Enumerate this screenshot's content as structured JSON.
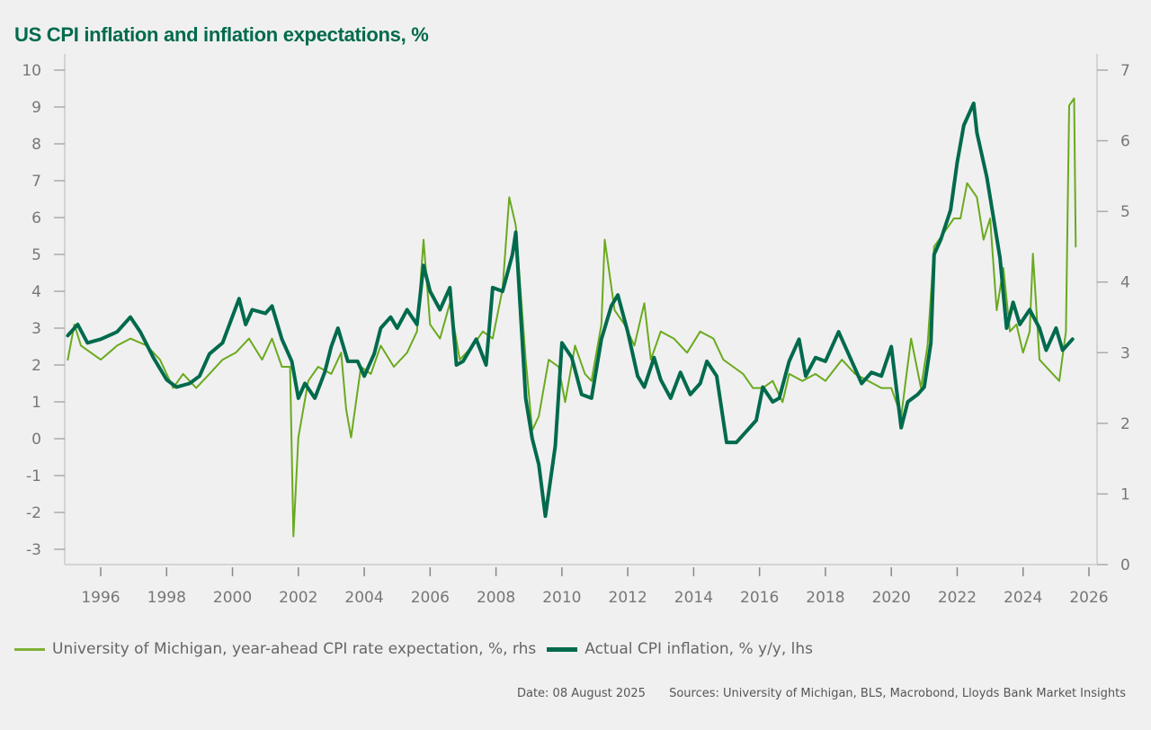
{
  "chart_data": {
    "type": "line",
    "title": "US CPI inflation and inflation expectations, %",
    "xlabel": "",
    "ylabel_left": "",
    "ylabel_right": "",
    "x_ticks": [
      "1996",
      "1998",
      "2000",
      "2002",
      "2004",
      "2006",
      "2008",
      "2010",
      "2012",
      "2014",
      "2016",
      "2018",
      "2020",
      "2022",
      "2024",
      "2026"
    ],
    "xlim": [
      1995.0,
      2026.3
    ],
    "y_left": {
      "ticks": [
        "10",
        "9",
        "8",
        "7",
        "6",
        "5",
        "4",
        "3",
        "2",
        "1",
        "0",
        "-1",
        "-2",
        "-3"
      ],
      "ylim": [
        -3,
        10
      ]
    },
    "y_right": {
      "ticks": [
        "7",
        "6",
        "5",
        "4",
        "3",
        "2",
        "1",
        "0"
      ],
      "ylim": [
        0,
        7
      ]
    },
    "grid": false,
    "legend_position": "bottom",
    "series": [
      {
        "name": "University of Michigan, year-ahead CPI rate expectation, %, rhs",
        "axis": "right",
        "color": "#6aaa1e",
        "x": [
          1995.0,
          1995.2,
          1995.4,
          1996.0,
          1996.5,
          1996.9,
          1997.4,
          1997.8,
          1998.2,
          1998.5,
          1998.9,
          1999.3,
          1999.7,
          2000.1,
          2000.5,
          2000.9,
          2001.2,
          2001.5,
          2001.75,
          2001.85,
          2002.0,
          2002.3,
          2002.6,
          2003.0,
          2003.3,
          2003.45,
          2003.6,
          2003.9,
          2004.2,
          2004.5,
          2004.9,
          2005.3,
          2005.6,
          2005.8,
          2006.0,
          2006.3,
          2006.6,
          2006.9,
          2007.3,
          2007.6,
          2007.9,
          2008.2,
          2008.4,
          2008.6,
          2008.9,
          2009.1,
          2009.3,
          2009.6,
          2009.9,
          2010.1,
          2010.4,
          2010.7,
          2010.9,
          2011.2,
          2011.3,
          2011.6,
          2011.9,
          2012.2,
          2012.5,
          2012.7,
          2013.0,
          2013.4,
          2013.8,
          2014.2,
          2014.6,
          2014.9,
          2015.2,
          2015.5,
          2015.8,
          2016.1,
          2016.4,
          2016.7,
          2016.9,
          2017.3,
          2017.7,
          2018.0,
          2018.5,
          2018.9,
          2019.3,
          2019.7,
          2020.0,
          2020.3,
          2020.6,
          2020.9,
          2021.1,
          2021.3,
          2021.6,
          2021.9,
          2022.1,
          2022.3,
          2022.6,
          2022.8,
          2023.0,
          2023.2,
          2023.4,
          2023.6,
          2023.8,
          2024.0,
          2024.2,
          2024.3,
          2024.5,
          2024.9,
          2025.1,
          2025.3,
          2025.4,
          2025.55,
          2025.6
        ],
        "values": [
          2.9,
          3.4,
          3.1,
          2.9,
          3.1,
          3.2,
          3.1,
          2.9,
          2.5,
          2.7,
          2.5,
          2.7,
          2.9,
          3.0,
          3.2,
          2.9,
          3.2,
          2.8,
          2.8,
          0.4,
          1.8,
          2.6,
          2.8,
          2.7,
          3.0,
          2.2,
          1.8,
          2.8,
          2.7,
          3.1,
          2.8,
          3.0,
          3.3,
          4.6,
          3.4,
          3.2,
          3.7,
          2.9,
          3.1,
          3.3,
          3.2,
          3.9,
          5.2,
          4.8,
          2.9,
          1.9,
          2.1,
          2.9,
          2.8,
          2.3,
          3.1,
          2.7,
          2.6,
          3.4,
          4.6,
          3.6,
          3.4,
          3.1,
          3.7,
          2.9,
          3.3,
          3.2,
          3.0,
          3.3,
          3.2,
          2.9,
          2.8,
          2.7,
          2.5,
          2.5,
          2.6,
          2.3,
          2.7,
          2.6,
          2.7,
          2.6,
          2.9,
          2.7,
          2.6,
          2.5,
          2.5,
          2.1,
          3.2,
          2.5,
          3.1,
          4.5,
          4.7,
          4.9,
          4.9,
          5.4,
          5.2,
          4.6,
          4.9,
          3.6,
          4.2,
          3.3,
          3.4,
          3.0,
          3.3,
          4.4,
          2.9,
          2.7,
          2.6,
          3.3,
          6.5,
          6.6,
          4.5
        ]
      },
      {
        "name": "Actual CPI inflation, % y/y, lhs",
        "axis": "left",
        "color": "#006a4d",
        "x": [
          1995.0,
          1995.3,
          1995.6,
          1996.0,
          1996.5,
          1996.9,
          1997.2,
          1997.6,
          1998.0,
          1998.3,
          1998.7,
          1999.0,
          1999.3,
          1999.7,
          2000.2,
          2000.4,
          2000.6,
          2001.0,
          2001.2,
          2001.5,
          2001.8,
          2002.0,
          2002.2,
          2002.5,
          2002.8,
          2003.0,
          2003.2,
          2003.5,
          2003.8,
          2004.0,
          2004.3,
          2004.5,
          2004.8,
          2005.0,
          2005.3,
          2005.6,
          2005.8,
          2006.0,
          2006.3,
          2006.6,
          2006.8,
          2007.0,
          2007.4,
          2007.7,
          2007.9,
          2008.2,
          2008.5,
          2008.6,
          2008.9,
          2009.1,
          2009.3,
          2009.5,
          2009.8,
          2010.0,
          2010.3,
          2010.6,
          2010.9,
          2011.2,
          2011.5,
          2011.7,
          2012.0,
          2012.3,
          2012.5,
          2012.8,
          2013.0,
          2013.3,
          2013.6,
          2013.9,
          2014.2,
          2014.4,
          2014.7,
          2015.0,
          2015.3,
          2015.6,
          2015.9,
          2016.1,
          2016.4,
          2016.6,
          2016.9,
          2017.2,
          2017.4,
          2017.7,
          2018.0,
          2018.4,
          2018.7,
          2018.9,
          2019.1,
          2019.4,
          2019.7,
          2020.0,
          2020.3,
          2020.5,
          2020.8,
          2021.0,
          2021.2,
          2021.3,
          2021.5,
          2021.8,
          2022.0,
          2022.2,
          2022.5,
          2022.6,
          2022.9,
          2023.1,
          2023.3,
          2023.5,
          2023.7,
          2023.9,
          2024.2,
          2024.5,
          2024.7,
          2025.0,
          2025.2,
          2025.5
        ],
        "values": [
          2.8,
          3.1,
          2.6,
          2.7,
          2.9,
          3.3,
          2.9,
          2.2,
          1.6,
          1.4,
          1.5,
          1.7,
          2.3,
          2.6,
          3.8,
          3.1,
          3.5,
          3.4,
          3.6,
          2.7,
          2.1,
          1.1,
          1.5,
          1.1,
          1.8,
          2.5,
          3.0,
          2.1,
          2.1,
          1.7,
          2.3,
          3.0,
          3.3,
          3.0,
          3.5,
          3.1,
          4.7,
          4.0,
          3.5,
          4.1,
          2.0,
          2.1,
          2.7,
          2.0,
          4.1,
          4.0,
          5.0,
          5.6,
          1.1,
          0.0,
          -0.7,
          -2.1,
          -0.2,
          2.6,
          2.2,
          1.2,
          1.1,
          2.7,
          3.6,
          3.9,
          2.9,
          1.7,
          1.4,
          2.2,
          1.6,
          1.1,
          1.8,
          1.2,
          1.5,
          2.1,
          1.7,
          -0.1,
          -0.1,
          0.2,
          0.5,
          1.4,
          1.0,
          1.1,
          2.1,
          2.7,
          1.7,
          2.2,
          2.1,
          2.9,
          2.3,
          1.9,
          1.5,
          1.8,
          1.7,
          2.5,
          0.3,
          1.0,
          1.2,
          1.4,
          2.6,
          5.0,
          5.4,
          6.2,
          7.5,
          8.5,
          9.1,
          8.3,
          7.1,
          6.0,
          4.9,
          3.0,
          3.7,
          3.1,
          3.5,
          3.0,
          2.4,
          3.0,
          2.4,
          2.7
        ]
      }
    ]
  },
  "footer": {
    "date": "Date: 08 August 2025",
    "sources": "Sources: University of Michigan, BLS, Macrobond, Lloyds Bank Market Insights"
  }
}
